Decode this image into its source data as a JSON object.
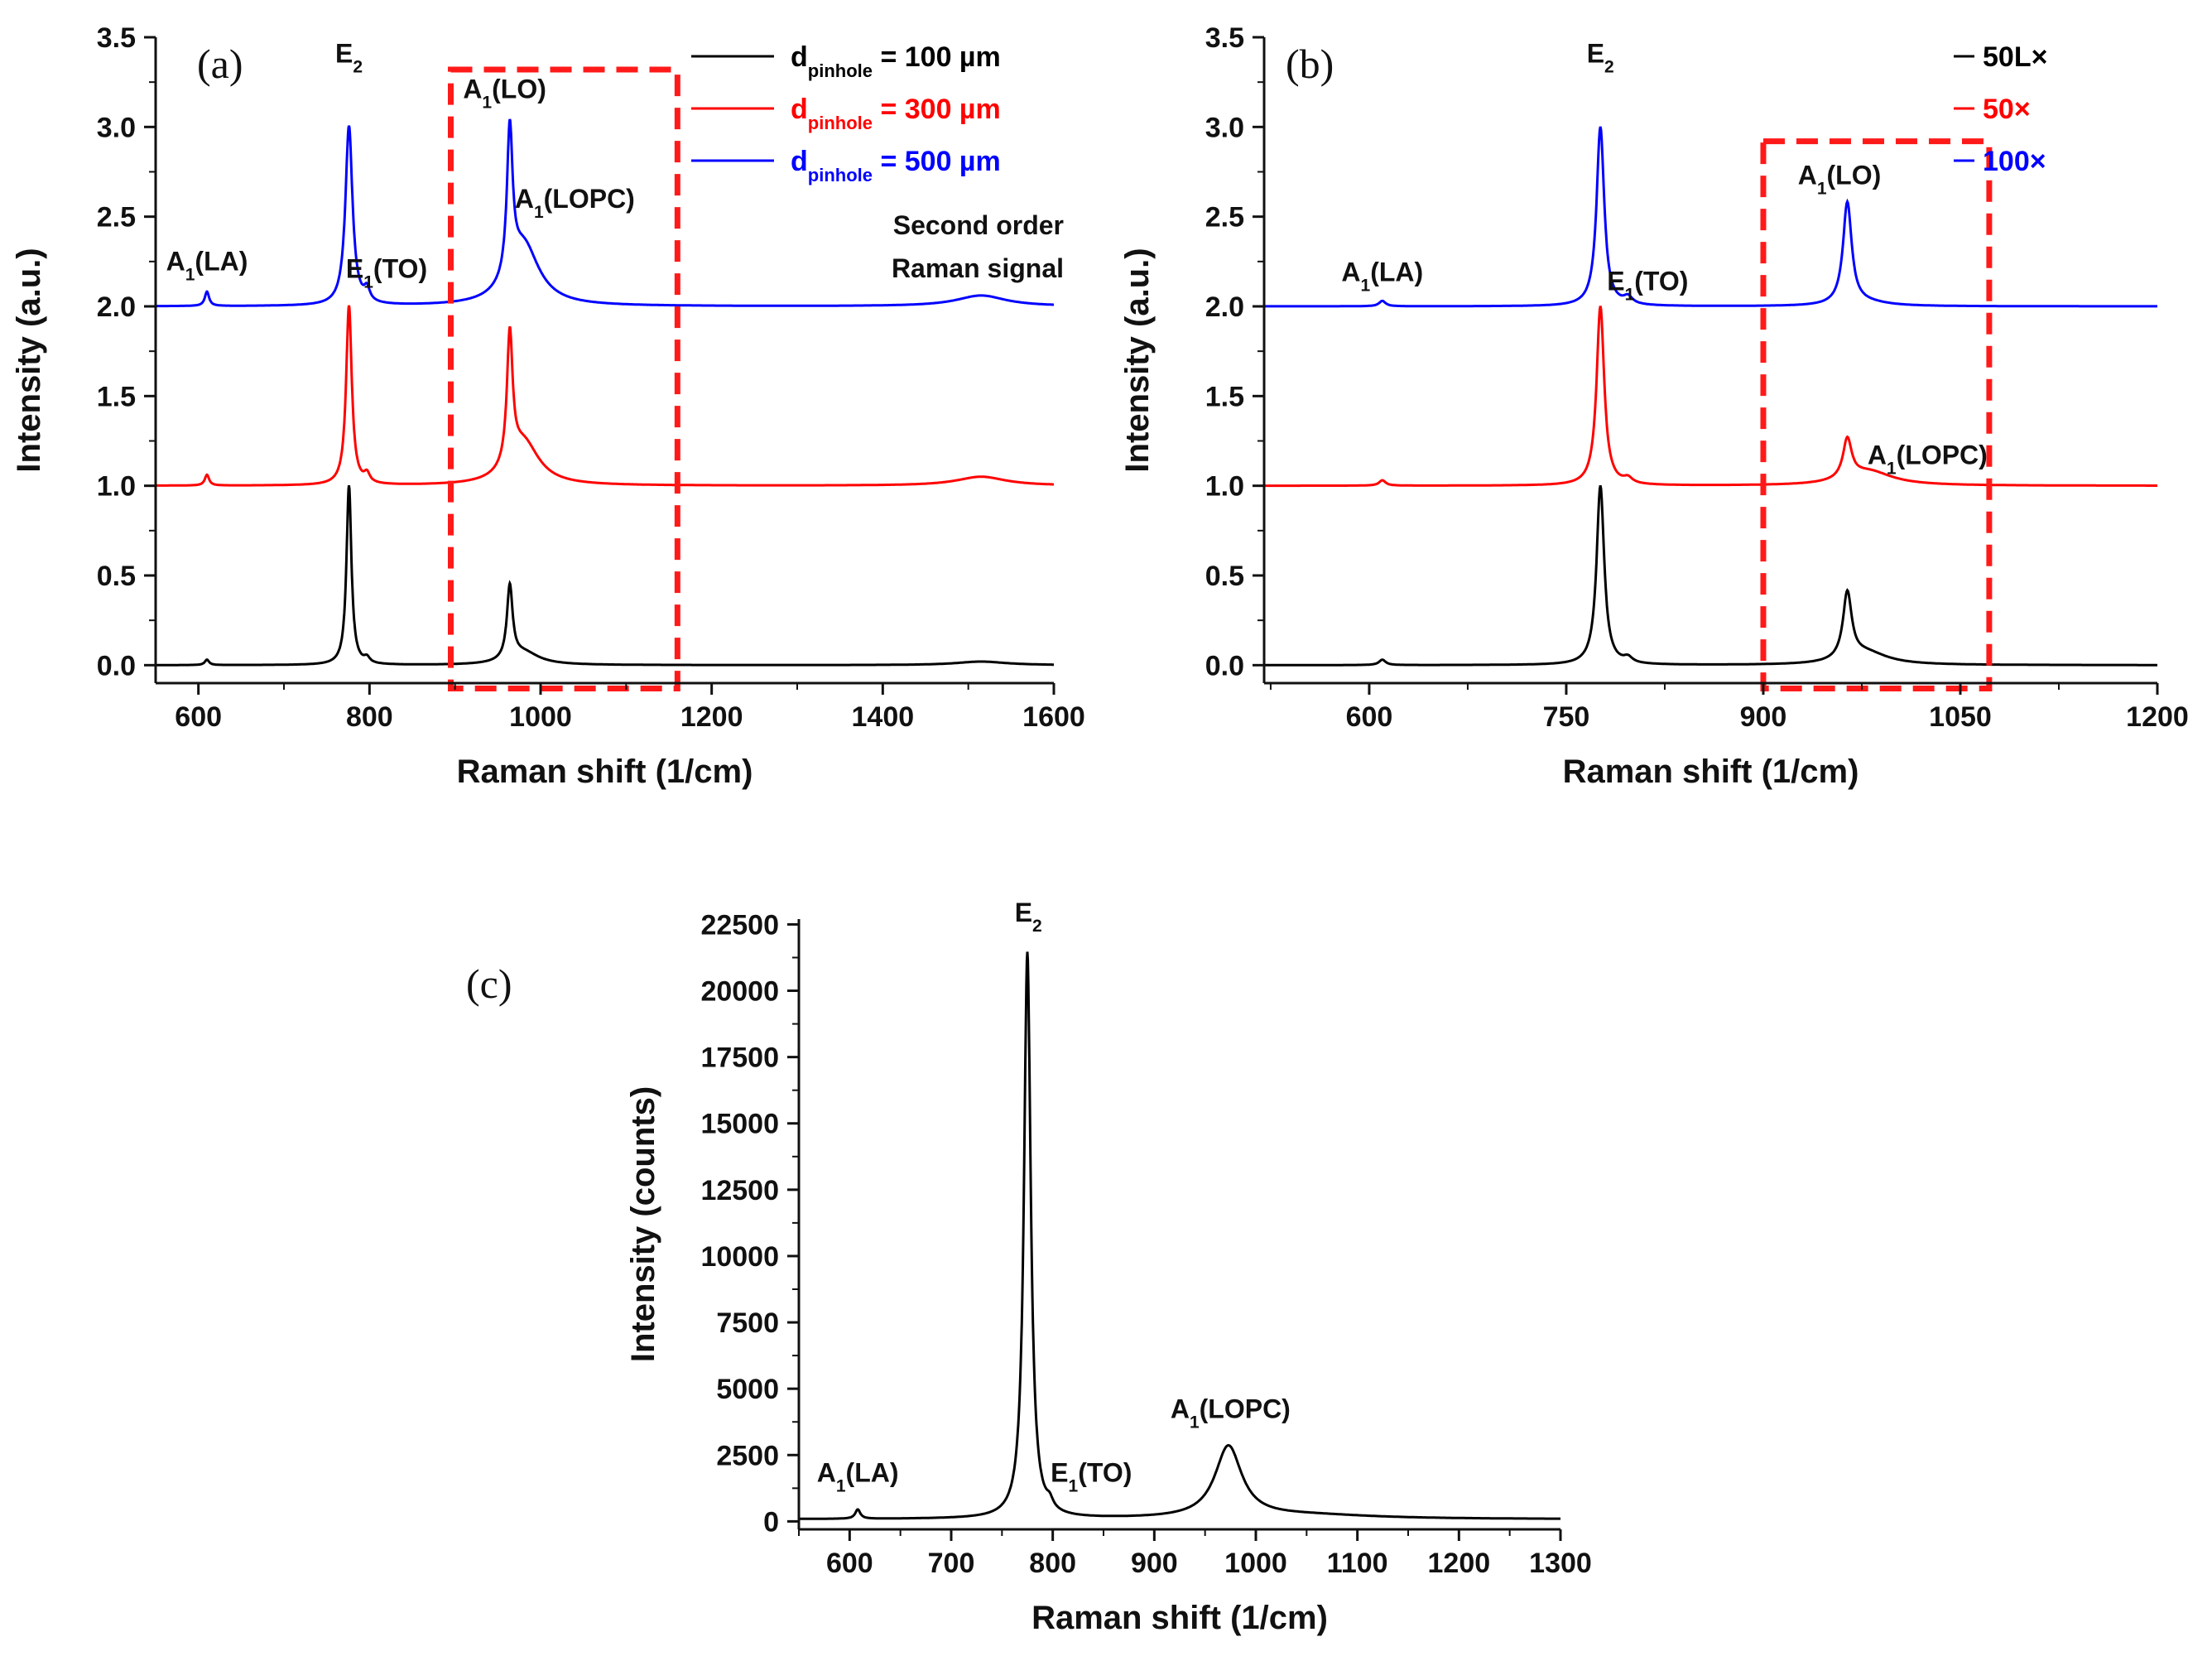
{
  "figure": {
    "panel_labels": [
      "(a)",
      "(b)",
      "(c)"
    ]
  },
  "chart_data": [
    {
      "type": "line",
      "panel": "(a)",
      "xlabel": "Raman shift (1/cm)",
      "ylabel": "Intensity (a.u.)",
      "xlim": [
        550,
        1600
      ],
      "ylim": [
        -0.1,
        3.5
      ],
      "xticks": [
        600,
        800,
        1000,
        1200,
        1400,
        1600
      ],
      "yticks": [
        0.0,
        0.5,
        1.0,
        1.5,
        2.0,
        2.5,
        3.0,
        3.5
      ],
      "legend_position": "top-right",
      "series": [
        {
          "name": "d_pinhole = 100 µm",
          "legend_main": "d",
          "legend_sub": "pinhole",
          "legend_rest": " = 100 µm",
          "color": "#000000",
          "offset": 0,
          "peaks": [
            [
              610,
              0.03,
              3
            ],
            [
              776,
              1.0,
              3.5
            ],
            [
              797,
              0.03,
              4
            ],
            [
              964,
              0.41,
              4
            ],
            [
              980,
              0.07,
              22
            ],
            [
              1515,
              0.02,
              35
            ]
          ]
        },
        {
          "name": "d_pinhole = 300 µm",
          "legend_main": "d",
          "legend_sub": "pinhole",
          "legend_rest": " = 300 µm",
          "color": "#ff0000",
          "offset": 1,
          "peaks": [
            [
              610,
              0.06,
              3
            ],
            [
              776,
              1.0,
              4
            ],
            [
              797,
              0.05,
              4
            ],
            [
              964,
              0.73,
              4
            ],
            [
              980,
              0.24,
              22
            ],
            [
              1515,
              0.05,
              35
            ]
          ]
        },
        {
          "name": "d_pinhole = 500 µm",
          "legend_main": "d",
          "legend_sub": "pinhole",
          "legend_rest": " = 500 µm",
          "color": "#0000ff",
          "offset": 2,
          "peaks": [
            [
              610,
              0.08,
              3
            ],
            [
              776,
              1.0,
              5
            ],
            [
              797,
              0.07,
              4
            ],
            [
              964,
              0.82,
              4
            ],
            [
              980,
              0.34,
              22
            ],
            [
              1515,
              0.06,
              35
            ]
          ]
        }
      ],
      "annotations": [
        {
          "main": "A",
          "sub": "1",
          "rest": "(LA)",
          "x": 610,
          "y": 2.2
        },
        {
          "main": "E",
          "sub": "2",
          "rest": "",
          "x": 776,
          "y": 3.36
        },
        {
          "main": "E",
          "sub": "1",
          "rest": "(TO)",
          "x": 820,
          "y": 2.16
        },
        {
          "main": "A",
          "sub": "1",
          "rest": "(LO)",
          "x": 958,
          "y": 3.16
        },
        {
          "main": "A",
          "sub": "1",
          "rest": "(LOPC)",
          "x": 1040,
          "y": 2.55
        }
      ],
      "note_lines": [
        "Second order",
        "Raman signal"
      ],
      "highlight_box_x": [
        895,
        1160
      ],
      "highlight_box_y": [
        -0.13,
        3.32
      ]
    },
    {
      "type": "line",
      "panel": "(b)",
      "xlabel": "Raman shift (1/cm)",
      "ylabel": "Intensity (a.u.)",
      "xlim": [
        520,
        1200
      ],
      "ylim": [
        -0.1,
        3.5
      ],
      "xticks": [
        600,
        750,
        900,
        1050,
        1200
      ],
      "yticks": [
        0.0,
        0.5,
        1.0,
        1.5,
        2.0,
        2.5,
        3.0,
        3.5
      ],
      "legend_position": "top-right",
      "series": [
        {
          "name": "50L×",
          "legend_main": "50L×",
          "legend_sub": "",
          "legend_rest": "",
          "color": "#000000",
          "offset": 0,
          "peaks": [
            [
              610,
              0.03,
              3
            ],
            [
              776,
              1.0,
              3.5
            ],
            [
              797,
              0.03,
              4
            ],
            [
              964,
              0.37,
              4
            ],
            [
              978,
              0.07,
              20
            ]
          ]
        },
        {
          "name": "50×",
          "legend_main": "50×",
          "legend_sub": "",
          "legend_rest": "",
          "color": "#ff0000",
          "offset": 1,
          "peaks": [
            [
              610,
              0.03,
              3
            ],
            [
              776,
              1.0,
              3.5
            ],
            [
              797,
              0.03,
              4
            ],
            [
              964,
              0.22,
              4
            ],
            [
              980,
              0.08,
              22
            ]
          ]
        },
        {
          "name": "100×",
          "legend_main": "100×",
          "legend_sub": "",
          "legend_rest": "",
          "color": "#0000ff",
          "offset": 2,
          "peaks": [
            [
              610,
              0.03,
              3
            ],
            [
              776,
              1.0,
              3.5
            ],
            [
              797,
              0.04,
              4
            ],
            [
              964,
              0.57,
              4
            ],
            [
              978,
              0.02,
              20
            ]
          ]
        }
      ],
      "annotations": [
        {
          "main": "A",
          "sub": "1",
          "rest": "(LA)",
          "x": 610,
          "y": 2.14
        },
        {
          "main": "E",
          "sub": "2",
          "rest": "",
          "x": 776,
          "y": 3.36
        },
        {
          "main": "E",
          "sub": "1",
          "rest": "(TO)",
          "x": 812,
          "y": 2.09
        },
        {
          "main": "A",
          "sub": "1",
          "rest": "(LO)",
          "x": 958,
          "y": 2.68
        },
        {
          "main": "A",
          "sub": "1",
          "rest": "(LOPC)",
          "x": 1025,
          "y": 1.12
        }
      ],
      "highlight_box_x": [
        900,
        1072
      ],
      "highlight_box_y": [
        -0.13,
        2.92
      ]
    },
    {
      "type": "line",
      "panel": "(c)",
      "xlabel": "Raman shift (1/cm)",
      "ylabel": "Intensity (counts)",
      "xlim": [
        550,
        1300
      ],
      "ylim": [
        -300,
        22700
      ],
      "xticks": [
        600,
        700,
        800,
        900,
        1000,
        1100,
        1200,
        1300
      ],
      "yticks": [
        0,
        2500,
        5000,
        7500,
        10000,
        12500,
        15000,
        17500,
        20000,
        22500
      ],
      "series": [
        {
          "name": "spectrum",
          "color": "#000000",
          "baseline": 80,
          "peaks": [
            [
              608,
              350,
              3
            ],
            [
              775,
              21350,
              4
            ],
            [
              797,
              300,
              4
            ],
            [
              973,
              2700,
              16
            ],
            [
              1050,
              150,
              80
            ]
          ]
        }
      ],
      "annotations": [
        {
          "main": "A",
          "sub": "1",
          "rest": "(LA)",
          "x": 608,
          "y": 1500
        },
        {
          "main": "E",
          "sub": "2",
          "rest": "",
          "x": 776,
          "y": 22600
        },
        {
          "main": "E",
          "sub": "1",
          "rest": "(TO)",
          "x": 838,
          "y": 1500
        },
        {
          "main": "A",
          "sub": "1",
          "rest": "(LOPC)",
          "x": 975,
          "y": 3900
        }
      ]
    }
  ]
}
